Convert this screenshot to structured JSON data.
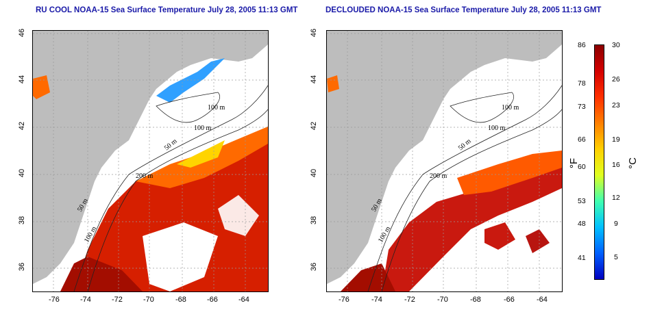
{
  "panels": [
    {
      "title": "RU COOL NOAA-15 Sea Surface Temperature July 28, 2005 11:13 GMT",
      "contour_labels": [
        "100 m",
        "100 m",
        "50 m",
        "200 m",
        "50 m",
        "100 m"
      ]
    },
    {
      "title": "DECLOUDED NOAA-15 Sea Surface Temperature July 28, 2005 11:13 GMT",
      "contour_labels": [
        "100 m",
        "100 m",
        "50 m",
        "200 m",
        "50 m",
        "100 m"
      ]
    }
  ],
  "axes": {
    "x_ticks": [
      "-76",
      "-74",
      "-72",
      "-70",
      "-68",
      "-66",
      "-64"
    ],
    "y_ticks": [
      "36",
      "38",
      "40",
      "42",
      "44",
      "46"
    ]
  },
  "colorbar": {
    "fahrenheit_unit": "°F",
    "celsius_unit": "°C",
    "fahrenheit_ticks": [
      "86",
      "78",
      "73",
      "66",
      "60",
      "53",
      "48",
      "41"
    ],
    "celsius_ticks": [
      "30",
      "26",
      "23",
      "19",
      "16",
      "12",
      "9",
      "5"
    ],
    "colors": [
      "#8b0000",
      "#d40000",
      "#ff3000",
      "#ff8000",
      "#ffd000",
      "#e0ff20",
      "#40ffb0",
      "#00c0ff",
      "#0060ff",
      "#0000c0"
    ]
  },
  "colors": {
    "land": "#bdbdbd",
    "title": "#1a1aa8"
  }
}
